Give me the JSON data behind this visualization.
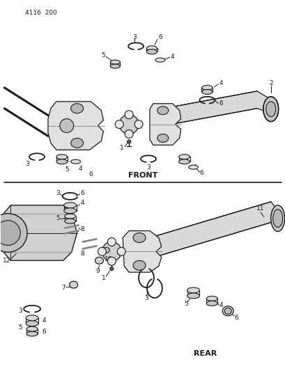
{
  "page_id": "4116  200",
  "background_color": "#ffffff",
  "line_color": "#1a1a1a",
  "text_color": "#1a1a1a",
  "front_label": "FRONT",
  "rear_label": "REAR",
  "figsize": [
    4.1,
    5.33
  ],
  "dpi": 100
}
